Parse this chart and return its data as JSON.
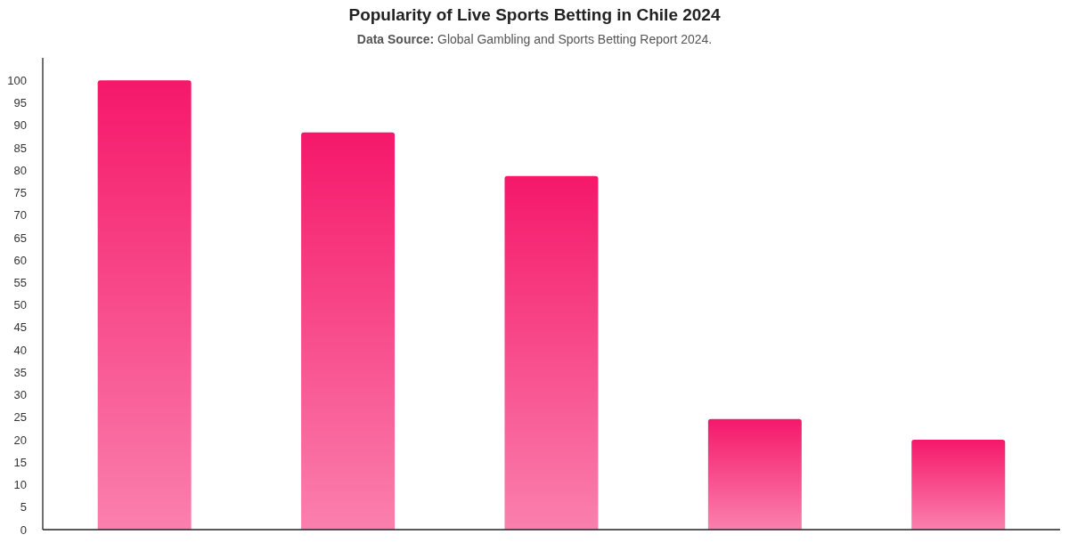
{
  "chart_data": {
    "type": "bar",
    "title": "Popularity of Live Sports Betting in Chile 2024",
    "subtitle": "Data Source: Global Gambling and Sports Betting Report 2024.",
    "categories": [
      null,
      null,
      null,
      null,
      null
    ],
    "values": [
      100,
      88.4,
      78.7,
      24.6,
      20
    ],
    "color": "#f5186a",
    "ylim": [
      0,
      105
    ],
    "yticks": [
      0,
      5,
      10,
      15,
      20,
      25,
      30,
      35,
      40,
      45,
      50,
      55,
      60,
      65,
      70,
      75,
      80,
      85,
      90,
      95,
      100
    ],
    "tick_labels": "y"
  }
}
